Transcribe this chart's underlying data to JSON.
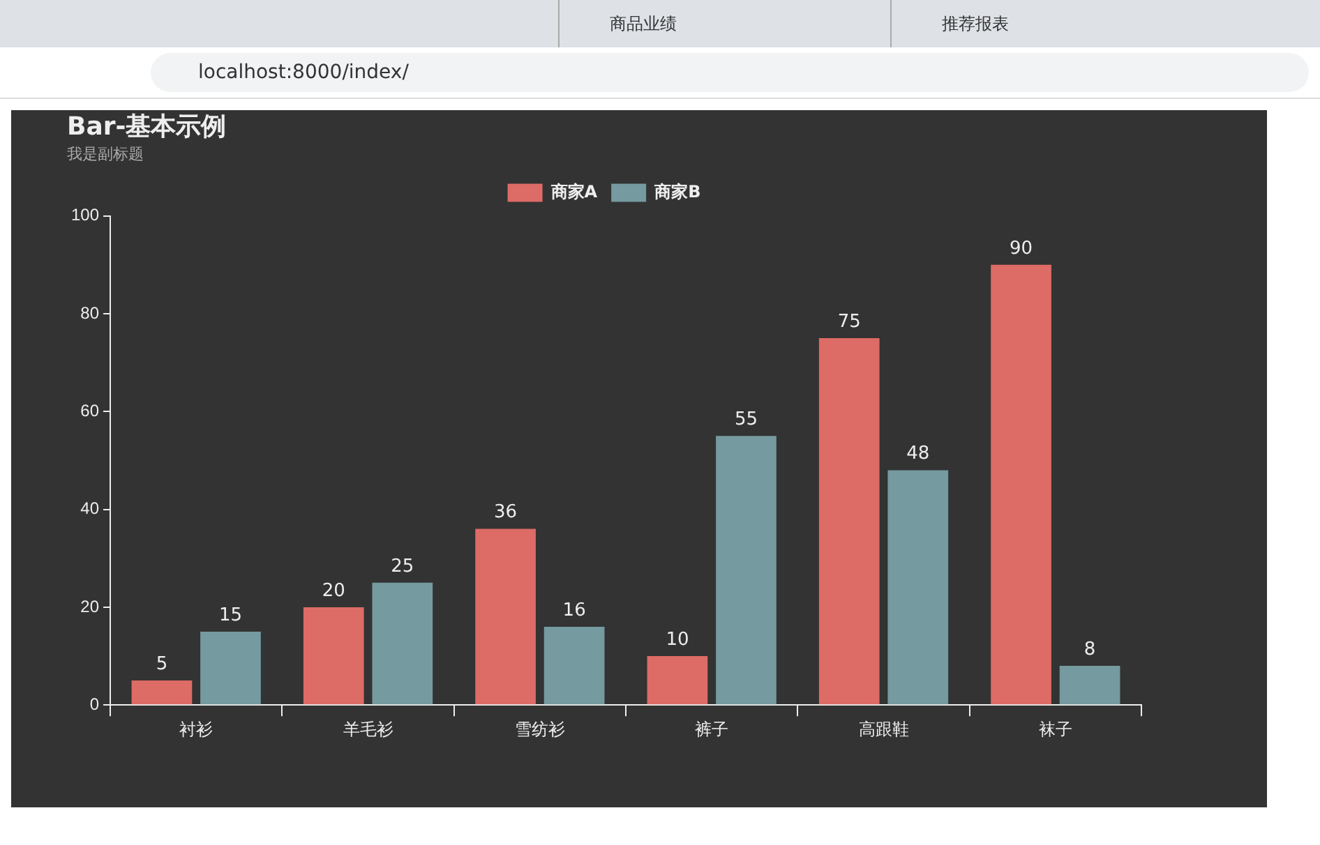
{
  "chart_data": {
    "type": "bar",
    "title": "Bar-基本示例",
    "subtitle": "我是副标题",
    "categories": [
      "衬衫",
      "羊毛衫",
      "雪纺衫",
      "裤子",
      "高跟鞋",
      "袜子"
    ],
    "series": [
      {
        "name": "商家A",
        "color": "#dd6b66",
        "values": [
          5,
          20,
          36,
          10,
          75,
          90
        ]
      },
      {
        "name": "商家B",
        "color": "#759aa0",
        "values": [
          15,
          25,
          16,
          55,
          48,
          8
        ]
      }
    ],
    "ylim": [
      0,
      100
    ],
    "yticks": [
      0,
      20,
      40,
      60,
      80,
      100
    ],
    "grid": false,
    "legend": "top",
    "data_labels": true,
    "annotations": [
      "商品业绩",
      "推荐报表",
      "localhost:8000/index/"
    ]
  }
}
